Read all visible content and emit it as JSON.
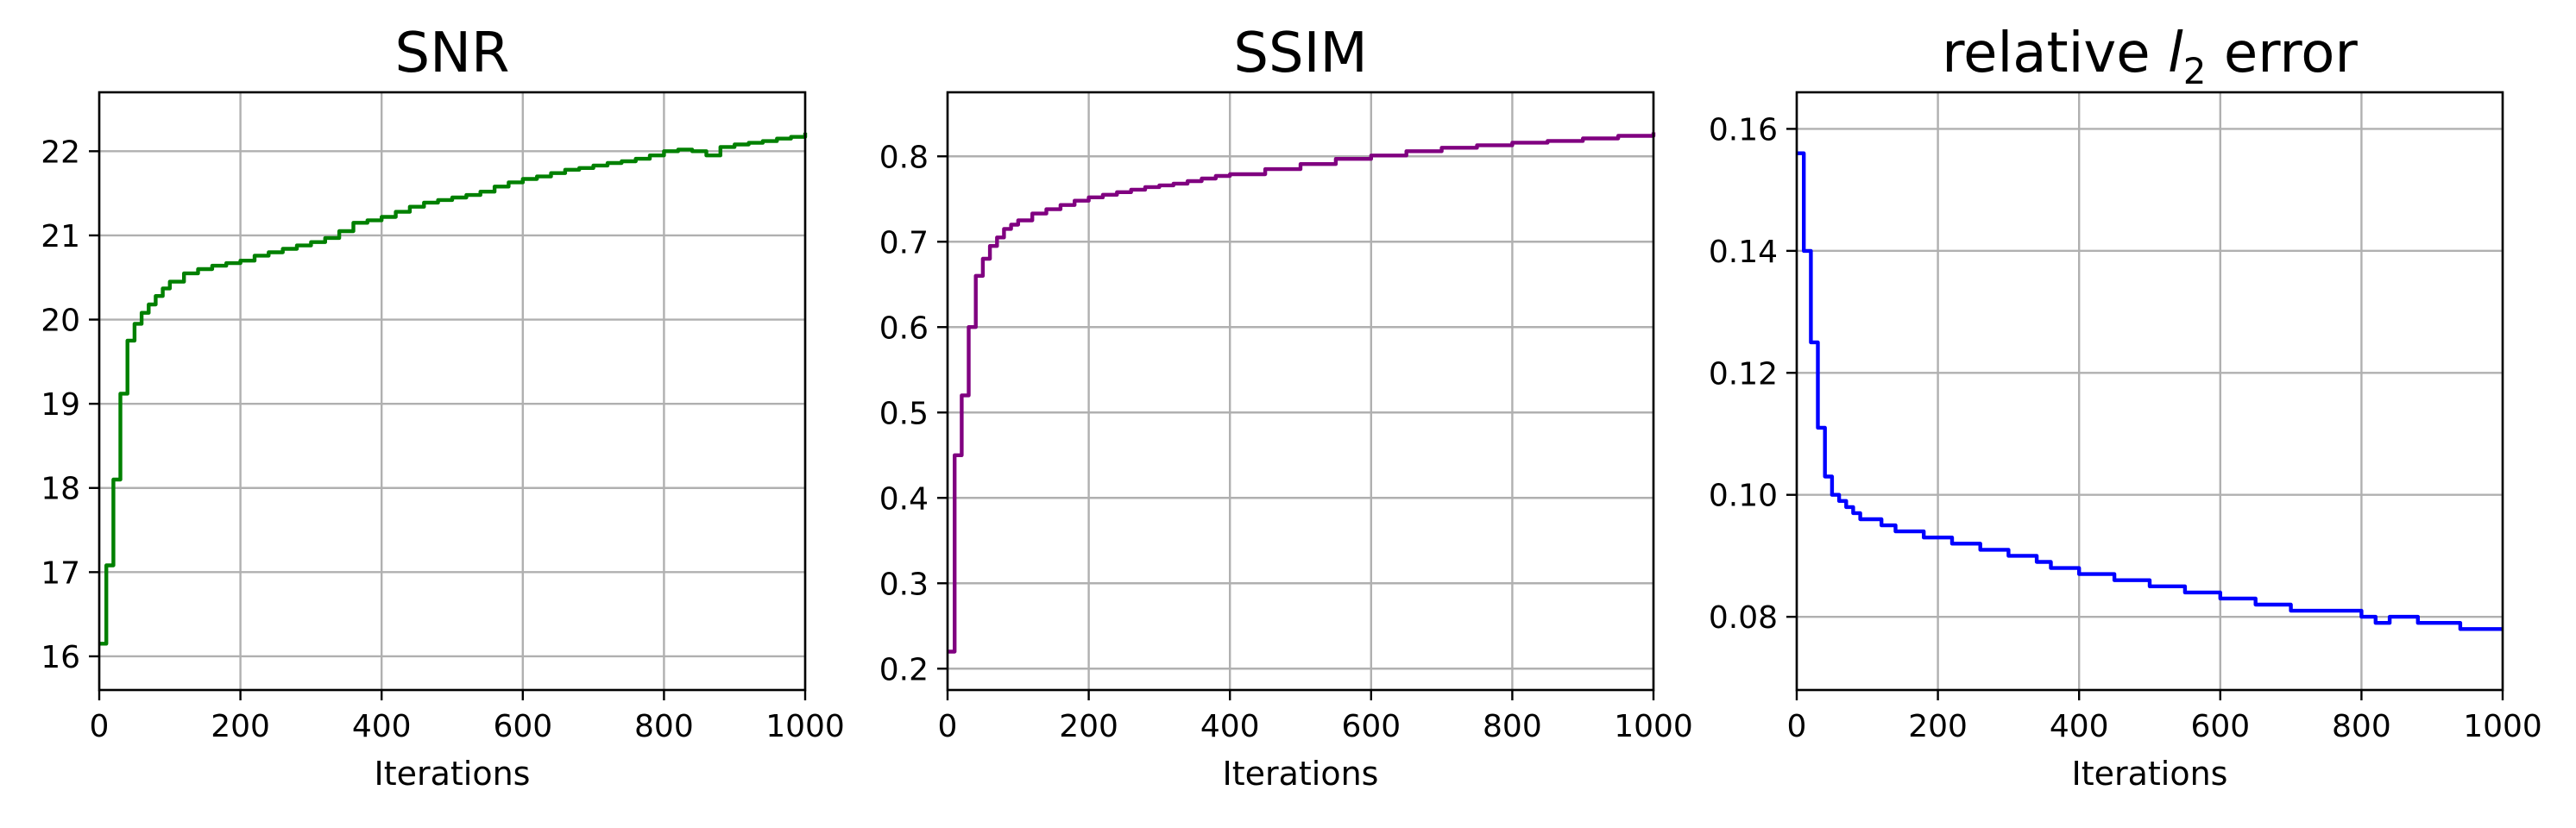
{
  "chart_data": [
    {
      "type": "line",
      "title": "SNR",
      "title_parts": [],
      "xlabel": "Iterations",
      "ylabel": "",
      "xlim": [
        0,
        1000
      ],
      "ylim": [
        15.6,
        22.7
      ],
      "xticks": [
        0,
        200,
        400,
        600,
        800,
        1000
      ],
      "yticks": [
        16,
        17,
        18,
        19,
        20,
        21,
        22
      ],
      "xtick_labels": [
        "0",
        "200",
        "400",
        "600",
        "800",
        "1000"
      ],
      "ytick_labels": [
        "16",
        "17",
        "18",
        "19",
        "20",
        "21",
        "22"
      ],
      "grid": true,
      "step": true,
      "color": "#008000",
      "series": [
        {
          "x": [
            0,
            10,
            20,
            30,
            40,
            50,
            60,
            70,
            80,
            90,
            100,
            120,
            140,
            160,
            180,
            200,
            220,
            240,
            260,
            280,
            300,
            320,
            340,
            360,
            380,
            400,
            420,
            440,
            460,
            480,
            500,
            520,
            540,
            560,
            580,
            600,
            620,
            640,
            660,
            680,
            700,
            720,
            740,
            760,
            780,
            800,
            820,
            840,
            860,
            880,
            900,
            920,
            940,
            960,
            980,
            1000
          ],
          "values": [
            16.15,
            17.08,
            18.1,
            19.12,
            19.75,
            19.95,
            20.08,
            20.18,
            20.28,
            20.37,
            20.45,
            20.55,
            20.6,
            20.64,
            20.67,
            20.7,
            20.76,
            20.8,
            20.84,
            20.88,
            20.92,
            20.97,
            21.05,
            21.15,
            21.18,
            21.22,
            21.28,
            21.34,
            21.39,
            21.42,
            21.45,
            21.48,
            21.52,
            21.58,
            21.63,
            21.67,
            21.7,
            21.74,
            21.78,
            21.8,
            21.83,
            21.86,
            21.88,
            21.91,
            21.95,
            22.0,
            22.02,
            22.0,
            21.95,
            22.05,
            22.08,
            22.1,
            22.12,
            22.15,
            22.17,
            22.22
          ]
        }
      ]
    },
    {
      "type": "line",
      "title": "SSIM",
      "title_parts": [],
      "xlabel": "Iterations",
      "ylabel": "",
      "xlim": [
        0,
        1000
      ],
      "ylim": [
        0.175,
        0.875
      ],
      "xticks": [
        0,
        200,
        400,
        600,
        800,
        1000
      ],
      "yticks": [
        0.2,
        0.3,
        0.4,
        0.5,
        0.6,
        0.7,
        0.8
      ],
      "xtick_labels": [
        "0",
        "200",
        "400",
        "600",
        "800",
        "1000"
      ],
      "ytick_labels": [
        "0.2",
        "0.3",
        "0.4",
        "0.5",
        "0.6",
        "0.7",
        "0.8"
      ],
      "grid": true,
      "step": true,
      "color": "#800080",
      "series": [
        {
          "x": [
            0,
            10,
            20,
            30,
            40,
            50,
            60,
            70,
            80,
            90,
            100,
            120,
            140,
            160,
            180,
            200,
            220,
            240,
            260,
            280,
            300,
            320,
            340,
            360,
            380,
            400,
            450,
            500,
            550,
            600,
            650,
            700,
            750,
            800,
            850,
            900,
            950,
            1000
          ],
          "values": [
            0.22,
            0.45,
            0.52,
            0.6,
            0.66,
            0.68,
            0.695,
            0.705,
            0.715,
            0.72,
            0.725,
            0.733,
            0.738,
            0.743,
            0.748,
            0.752,
            0.755,
            0.758,
            0.761,
            0.764,
            0.766,
            0.768,
            0.771,
            0.774,
            0.777,
            0.779,
            0.785,
            0.791,
            0.797,
            0.801,
            0.806,
            0.81,
            0.813,
            0.816,
            0.818,
            0.821,
            0.824,
            0.828
          ]
        }
      ]
    },
    {
      "type": "line",
      "title": "",
      "title_parts": [
        {
          "text": "relative ",
          "style": "normal"
        },
        {
          "text": "l",
          "style": "italic"
        },
        {
          "text": "2",
          "style": "sub"
        },
        {
          "text": " error",
          "style": "normal"
        }
      ],
      "xlabel": "Iterations",
      "ylabel": "",
      "xlim": [
        0,
        1000
      ],
      "ylim": [
        0.068,
        0.166
      ],
      "xticks": [
        0,
        200,
        400,
        600,
        800,
        1000
      ],
      "yticks": [
        0.08,
        0.1,
        0.12,
        0.14,
        0.16
      ],
      "xtick_labels": [
        "0",
        "200",
        "400",
        "600",
        "800",
        "1000"
      ],
      "ytick_labels": [
        "0.08",
        "0.10",
        "0.12",
        "0.14",
        "0.16"
      ],
      "grid": true,
      "step": true,
      "color": "#0000ff",
      "series": [
        {
          "x": [
            0,
            10,
            20,
            30,
            40,
            50,
            60,
            70,
            80,
            90,
            100,
            120,
            140,
            160,
            180,
            200,
            220,
            240,
            260,
            280,
            300,
            320,
            340,
            360,
            380,
            400,
            450,
            500,
            550,
            600,
            650,
            700,
            750,
            800,
            820,
            840,
            860,
            880,
            900,
            920,
            940,
            960,
            980,
            1000
          ],
          "values": [
            0.156,
            0.14,
            0.125,
            0.111,
            0.103,
            0.1,
            0.099,
            0.098,
            0.097,
            0.096,
            0.096,
            0.095,
            0.094,
            0.094,
            0.093,
            0.093,
            0.092,
            0.092,
            0.091,
            0.091,
            0.09,
            0.09,
            0.089,
            0.088,
            0.088,
            0.087,
            0.086,
            0.085,
            0.084,
            0.083,
            0.082,
            0.081,
            0.081,
            0.08,
            0.079,
            0.08,
            0.08,
            0.079,
            0.079,
            0.079,
            0.078,
            0.078,
            0.078,
            0.078
          ]
        }
      ]
    }
  ]
}
